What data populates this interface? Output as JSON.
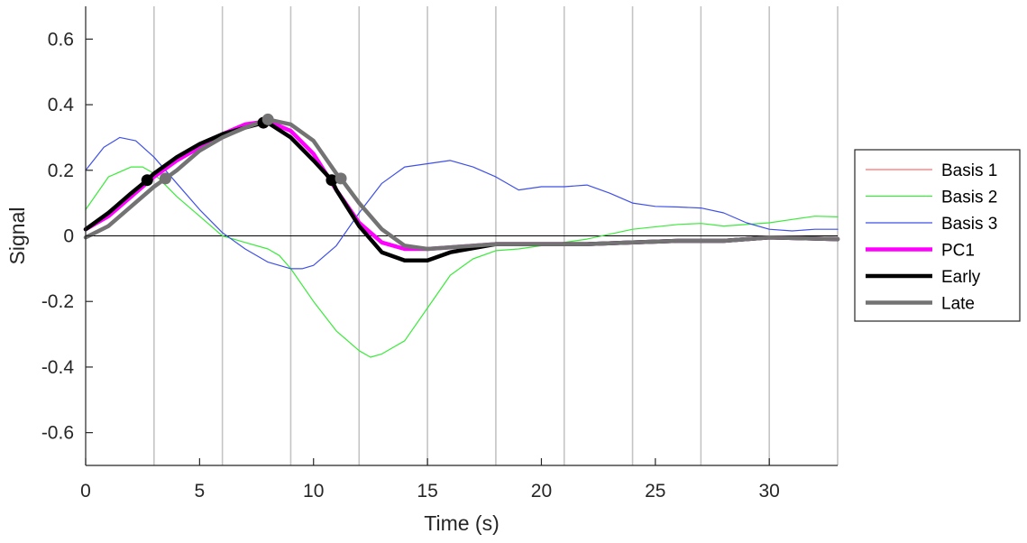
{
  "chart_data": {
    "type": "line",
    "xlabel": "Time (s)",
    "ylabel": "Signal",
    "xlim": [
      0,
      33
    ],
    "ylim": [
      -0.7,
      0.7
    ],
    "xticks": [
      0,
      5,
      10,
      15,
      20,
      25,
      30
    ],
    "xtick_labels": [
      "0",
      "5",
      "10",
      "15",
      "20",
      "25",
      "30"
    ],
    "yticks": [
      0.6,
      0.4,
      0.2,
      0,
      -0.2,
      -0.4,
      -0.6
    ],
    "ytick_labels": [
      "0.6",
      "0.4",
      "0.2",
      "0",
      "-0.2",
      "-0.4",
      "-0.6"
    ],
    "vertical_lines": [
      3,
      6,
      9,
      12,
      15,
      18,
      21,
      24,
      27,
      30,
      33
    ],
    "zero_line": true,
    "legend_position": "right",
    "series": [
      {
        "name": "Basis 1",
        "color": "#ff6f6f",
        "width": "thin",
        "x": [
          0,
          1,
          2,
          3,
          4,
          5,
          6,
          7,
          8,
          9,
          10,
          11,
          12,
          13,
          14,
          15,
          16,
          18,
          20,
          22,
          24,
          26,
          28,
          30,
          33
        ],
        "y": [
          0.02,
          0.06,
          0.12,
          0.18,
          0.23,
          0.27,
          0.31,
          0.34,
          0.35,
          0.32,
          0.25,
          0.14,
          0.04,
          -0.02,
          -0.04,
          -0.04,
          -0.035,
          -0.025,
          -0.025,
          -0.025,
          -0.02,
          -0.015,
          -0.015,
          -0.005,
          -0.01
        ]
      },
      {
        "name": "Basis 2",
        "color": "#3bea3b",
        "width": "thin",
        "x": [
          0,
          1,
          2,
          2.5,
          3,
          4,
          5,
          6,
          7,
          8,
          8.5,
          9,
          10,
          11,
          12,
          12.5,
          13,
          14,
          15,
          16,
          17,
          18,
          19,
          20,
          22,
          24,
          26,
          27,
          28,
          30,
          31,
          32,
          33
        ],
        "y": [
          0.08,
          0.18,
          0.21,
          0.21,
          0.19,
          0.12,
          0.06,
          0.0,
          -0.02,
          -0.04,
          -0.06,
          -0.1,
          -0.2,
          -0.29,
          -0.35,
          -0.37,
          -0.36,
          -0.32,
          -0.22,
          -0.12,
          -0.07,
          -0.045,
          -0.04,
          -0.03,
          -0.01,
          0.02,
          0.035,
          0.038,
          0.03,
          0.04,
          0.05,
          0.06,
          0.058
        ]
      },
      {
        "name": "Basis 3",
        "color": "#3f50e6",
        "width": "thin",
        "x": [
          0,
          0.8,
          1.5,
          2.2,
          3,
          4,
          5,
          6,
          7,
          8,
          9,
          9.5,
          10,
          11,
          12,
          13,
          14,
          15,
          16,
          17,
          18,
          19,
          20,
          21,
          22,
          23,
          24,
          25,
          26,
          27,
          28,
          29,
          30,
          31,
          32,
          33
        ],
        "y": [
          0.2,
          0.27,
          0.3,
          0.29,
          0.24,
          0.16,
          0.08,
          0.01,
          -0.04,
          -0.08,
          -0.1,
          -0.1,
          -0.09,
          -0.03,
          0.07,
          0.16,
          0.21,
          0.22,
          0.23,
          0.21,
          0.18,
          0.14,
          0.15,
          0.15,
          0.155,
          0.13,
          0.1,
          0.09,
          0.088,
          0.085,
          0.07,
          0.04,
          0.02,
          0.015,
          0.02,
          0.02
        ]
      },
      {
        "name": "PC1",
        "color": "#ff00ff",
        "width": "thick",
        "x": [
          0,
          1,
          2,
          3,
          4,
          5,
          6,
          7,
          8,
          9,
          10,
          11,
          12,
          13,
          14,
          15,
          16,
          18,
          20,
          22,
          24,
          26,
          28,
          30,
          33
        ],
        "y": [
          0.02,
          0.06,
          0.12,
          0.18,
          0.23,
          0.27,
          0.31,
          0.34,
          0.35,
          0.32,
          0.25,
          0.14,
          0.04,
          -0.02,
          -0.04,
          -0.04,
          -0.035,
          -0.025,
          -0.025,
          -0.025,
          -0.02,
          -0.015,
          -0.015,
          -0.005,
          -0.01
        ]
      },
      {
        "name": "Early",
        "color": "#000000",
        "width": "thick",
        "x": [
          0,
          1,
          2,
          2.7,
          3,
          4,
          5,
          6,
          7,
          7.8,
          8,
          9,
          10,
          10.8,
          11,
          12,
          13,
          14,
          15,
          16,
          18,
          20,
          22,
          24,
          26,
          28,
          30,
          33
        ],
        "y": [
          0.02,
          0.07,
          0.13,
          0.17,
          0.19,
          0.24,
          0.28,
          0.31,
          0.33,
          0.345,
          0.345,
          0.3,
          0.23,
          0.17,
          0.14,
          0.03,
          -0.05,
          -0.075,
          -0.075,
          -0.05,
          -0.025,
          -0.025,
          -0.025,
          -0.02,
          -0.015,
          -0.015,
          -0.005,
          -0.01
        ]
      },
      {
        "name": "Late",
        "color": "#737373",
        "width": "thick",
        "x": [
          0,
          1,
          2,
          3,
          3.5,
          4,
          5,
          6,
          7,
          8,
          9,
          10,
          11,
          11.2,
          12,
          13,
          14,
          15,
          16,
          18,
          20,
          22,
          24,
          26,
          28,
          30,
          33
        ],
        "y": [
          -0.005,
          0.03,
          0.09,
          0.15,
          0.175,
          0.2,
          0.26,
          0.3,
          0.33,
          0.355,
          0.34,
          0.29,
          0.19,
          0.175,
          0.1,
          0.02,
          -0.03,
          -0.04,
          -0.035,
          -0.025,
          -0.025,
          -0.025,
          -0.02,
          -0.015,
          -0.015,
          -0.005,
          -0.01
        ]
      }
    ],
    "markers": [
      {
        "series": "Early",
        "color": "#000000",
        "points": [
          [
            2.7,
            0.17
          ],
          [
            7.8,
            0.345
          ],
          [
            10.8,
            0.17
          ]
        ]
      },
      {
        "series": "Late",
        "color": "#737373",
        "points": [
          [
            3.5,
            0.175
          ],
          [
            8.0,
            0.355
          ],
          [
            11.2,
            0.175
          ]
        ]
      }
    ]
  }
}
